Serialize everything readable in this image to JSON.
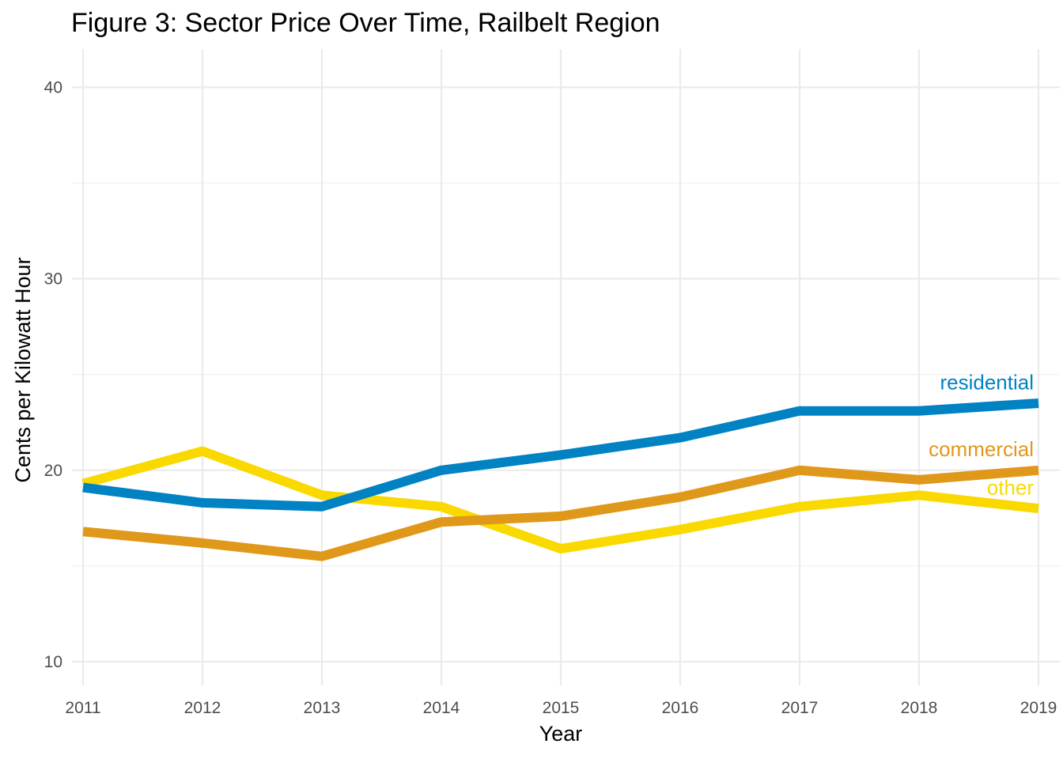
{
  "chart_data": {
    "type": "line",
    "title": "Figure 3: Sector Price Over Time, Railbelt Region",
    "xlabel": "Year",
    "ylabel": "Cents per Kilowatt Hour",
    "x": [
      2011,
      2012,
      2013,
      2014,
      2015,
      2016,
      2017,
      2018,
      2019
    ],
    "xticks": [
      "2011",
      "2012",
      "2013",
      "2014",
      "2015",
      "2016",
      "2017",
      "2018",
      "2019"
    ],
    "yticks": [
      "10",
      "20",
      "30",
      "40"
    ],
    "ylim": [
      8.8,
      42.0
    ],
    "grid": true,
    "legend": "direct labels at right end of each line",
    "series": [
      {
        "name": "residential",
        "label": "residential",
        "color": "#0082c3",
        "values": [
          19.1,
          18.3,
          18.1,
          20.0,
          20.8,
          21.7,
          23.1,
          23.1,
          23.5
        ]
      },
      {
        "name": "commercial",
        "label": "commercial",
        "color": "#e0981b",
        "values": [
          16.8,
          16.2,
          15.5,
          17.3,
          17.6,
          18.6,
          20.0,
          19.5,
          20.0
        ]
      },
      {
        "name": "other",
        "label": "other",
        "color": "#f9d900",
        "values": [
          19.3,
          21.0,
          18.7,
          18.1,
          15.9,
          16.9,
          18.1,
          18.7,
          18.0
        ]
      }
    ]
  }
}
